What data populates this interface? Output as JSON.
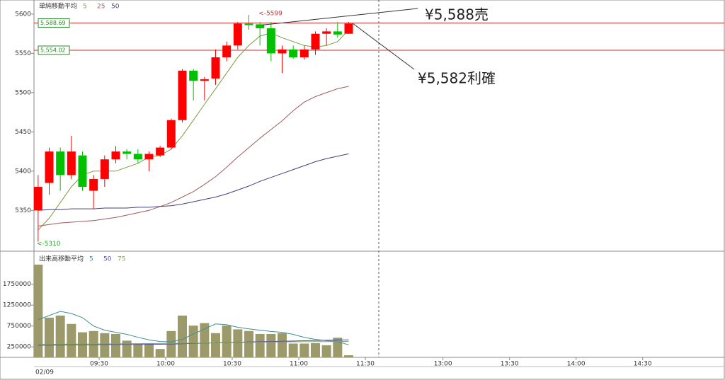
{
  "chart_data": [
    {
      "type": "candlestick",
      "title": "単純移動平均",
      "x": [
        "09:00",
        "09:05",
        "09:10",
        "09:15",
        "09:20",
        "09:25",
        "09:30",
        "09:35",
        "09:40",
        "09:45",
        "09:50",
        "09:55",
        "10:00",
        "10:05",
        "10:10",
        "10:15",
        "10:20",
        "10:25",
        "10:30",
        "10:35",
        "10:40",
        "10:45",
        "10:50",
        "10:55",
        "11:00",
        "11:05",
        "11:10",
        "11:15",
        "11:20"
      ],
      "open": [
        5350,
        5385,
        5425,
        5395,
        5420,
        5375,
        5390,
        5415,
        5425,
        5422,
        5415,
        5420,
        5430,
        5465,
        5528,
        5515,
        5518,
        5545,
        5560,
        5588,
        5587,
        5582,
        5550,
        5555,
        5545,
        5555,
        5575,
        5578,
        5575
      ],
      "high": [
        5395,
        5430,
        5430,
        5445,
        5425,
        5395,
        5420,
        5432,
        5428,
        5428,
        5425,
        5432,
        5467,
        5530,
        5530,
        5520,
        5555,
        5565,
        5590,
        5599,
        5590,
        5590,
        5560,
        5560,
        5560,
        5578,
        5582,
        5590,
        5590
      ],
      "low": [
        5310,
        5370,
        5375,
        5390,
        5375,
        5352,
        5380,
        5410,
        5415,
        5410,
        5400,
        5418,
        5428,
        5462,
        5490,
        5490,
        5510,
        5540,
        5555,
        5580,
        5560,
        5540,
        5525,
        5543,
        5542,
        5548,
        5560,
        5570,
        5575
      ],
      "close": [
        5380,
        5425,
        5395,
        5425,
        5380,
        5390,
        5415,
        5425,
        5422,
        5415,
        5422,
        5430,
        5465,
        5528,
        5515,
        5517,
        5545,
        5560,
        5588,
        5586,
        5582,
        5550,
        5555,
        5545,
        5555,
        5575,
        5578,
        5574,
        5588
      ],
      "up_color": "#ff0000",
      "down_color": "#00c000",
      "ylim": [
        5298,
        5618
      ],
      "yticks": [
        5350,
        5400,
        5450,
        5500,
        5550,
        5600
      ],
      "series": [
        {
          "name": "5",
          "color": "#7a9a40",
          "values": [
            5325,
            5340,
            5360,
            5380,
            5395,
            5400,
            5400,
            5400,
            5405,
            5410,
            5418,
            5420,
            5428,
            5445,
            5465,
            5485,
            5505,
            5525,
            5545,
            5560,
            5572,
            5576,
            5570,
            5565,
            5560,
            5558,
            5560,
            5565,
            5580
          ]
        },
        {
          "name": "25",
          "color": "#a05a5a",
          "values": [
            5330,
            5332,
            5334,
            5335,
            5336,
            5337,
            5339,
            5341,
            5344,
            5347,
            5350,
            5355,
            5360,
            5367,
            5374,
            5383,
            5393,
            5405,
            5418,
            5430,
            5442,
            5453,
            5464,
            5477,
            5488,
            5495,
            5500,
            5505,
            5508
          ]
        },
        {
          "name": "50",
          "color": "#40407a",
          "values": [
            5350,
            5351,
            5351,
            5352,
            5352,
            5352,
            5353,
            5353,
            5353,
            5354,
            5354,
            5355,
            5356,
            5358,
            5361,
            5364,
            5367,
            5371,
            5376,
            5381,
            5387,
            5392,
            5397,
            5402,
            5407,
            5412,
            5416,
            5419,
            5422
          ]
        }
      ],
      "price_lines": [
        {
          "value": 5588.69,
          "label": "5,588.69"
        },
        {
          "value": 5554.02,
          "label": "5,554.02"
        }
      ],
      "price_line_color": "#c83232",
      "extremes": [
        {
          "x": "10:40",
          "value": 5599,
          "label": "<-5599",
          "color": "#c83232"
        },
        {
          "x": "09:00",
          "value": 5310,
          "label": "<-5310",
          "color": "#20a020"
        }
      ],
      "annotations": [
        {
          "x": "10:40",
          "value": 5588,
          "text": "¥5,588売"
        },
        {
          "x": "11:20",
          "value": 5588,
          "text": "¥5,582利確"
        }
      ]
    },
    {
      "type": "bar",
      "title": "出来高移動平均",
      "color": "#9c9a6a",
      "x": [
        "09:00",
        "09:05",
        "09:10",
        "09:15",
        "09:20",
        "09:25",
        "09:30",
        "09:35",
        "09:40",
        "09:45",
        "09:50",
        "09:55",
        "10:00",
        "10:05",
        "10:10",
        "10:15",
        "10:20",
        "10:25",
        "10:30",
        "10:35",
        "10:40",
        "10:45",
        "10:50",
        "10:55",
        "11:00",
        "11:05",
        "11:10",
        "11:15",
        "11:20"
      ],
      "values": [
        2220000,
        950000,
        1000000,
        800000,
        600000,
        630000,
        580000,
        560000,
        400000,
        330000,
        330000,
        200000,
        630000,
        1000000,
        760000,
        820000,
        580000,
        760000,
        670000,
        630000,
        560000,
        560000,
        580000,
        330000,
        330000,
        340000,
        290000,
        470000,
        50000
      ],
      "ylim": [
        0,
        2540000
      ],
      "yticks": [
        250000,
        750000,
        1250000,
        1750000
      ],
      "series": [
        {
          "name": "5",
          "color": "#3f8f8f",
          "values": [
            900000,
            1000000,
            1100000,
            1050000,
            950000,
            750000,
            650000,
            600000,
            550000,
            480000,
            420000,
            380000,
            370000,
            430000,
            560000,
            680000,
            800000,
            780000,
            720000,
            680000,
            650000,
            620000,
            600000,
            550000,
            480000,
            430000,
            400000,
            380000,
            300000
          ]
        },
        {
          "name": "50",
          "color": "#5050a0",
          "values": [
            290000,
            292000,
            295000,
            298000,
            300000,
            302000,
            304000,
            306000,
            308000,
            310000,
            312000,
            314000,
            318000,
            325000,
            332000,
            340000,
            348000,
            355000,
            362000,
            368000,
            374000,
            380000,
            386000,
            392000,
            398000,
            404000,
            410000,
            415000,
            420000
          ]
        },
        {
          "name": "75",
          "color": "#80a060",
          "values": [
            310000,
            312000,
            314000,
            316000,
            318000,
            320000,
            322000,
            324000,
            326000,
            328000,
            330000,
            332000,
            334000,
            337000,
            340000,
            344000,
            348000,
            352000,
            356000,
            360000,
            363000,
            366000,
            369000,
            372000,
            374000,
            376000,
            378000,
            380000,
            382000
          ]
        }
      ],
      "xticks": [
        "09:30",
        "10:00",
        "10:30",
        "11:00",
        "11:30",
        "13:00",
        "13:30",
        "14:00",
        "14:30"
      ],
      "date": "02/09"
    }
  ]
}
